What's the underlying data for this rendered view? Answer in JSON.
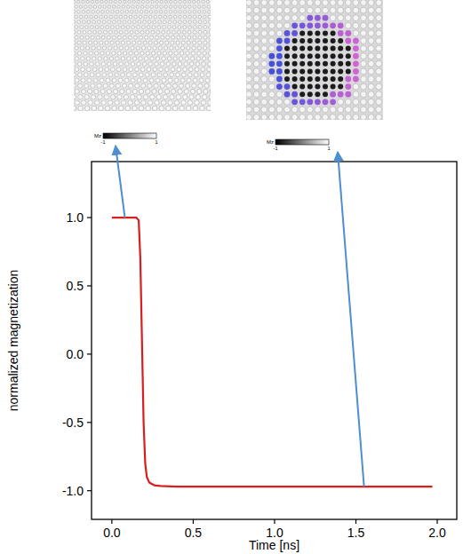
{
  "chart_data": {
    "type": "line",
    "x": [
      0,
      0.05,
      0.1,
      0.15,
      0.165,
      0.175,
      0.185,
      0.195,
      0.205,
      0.215,
      0.23,
      0.26,
      0.3,
      0.4,
      0.5,
      1.0,
      1.5,
      1.97
    ],
    "values": [
      1.0,
      1.0,
      1.0,
      1.0,
      0.98,
      0.7,
      0.1,
      -0.5,
      -0.8,
      -0.9,
      -0.94,
      -0.96,
      -0.965,
      -0.97,
      -0.97,
      -0.97,
      -0.97,
      -0.97
    ],
    "color": "#d81e1e",
    "xlabel": "Time [ns]",
    "ylabel": "normalized magnetization",
    "xlim": [
      -0.125,
      2.12
    ],
    "ylim": [
      -1.21,
      1.41
    ],
    "xticks": [
      {
        "value": 0,
        "label": "0.0"
      },
      0.5,
      {
        "value": 1,
        "label": "1.0"
      },
      1.5,
      {
        "value": 2,
        "label": "2.0"
      }
    ],
    "yticks": [
      {
        "value": -1,
        "label": "-1.0"
      },
      -0.5,
      {
        "value": 0,
        "label": "0.0"
      },
      0.5,
      {
        "value": 1,
        "label": "1.0"
      }
    ],
    "grid": false
  },
  "insets": [
    {
      "label": "Mz",
      "ticks": [
        -1,
        1
      ],
      "x": 0.08,
      "y": 1.0
    },
    {
      "label": "Mz",
      "ticks": [
        -1,
        1
      ],
      "x": 1.55,
      "y": -0.97
    }
  ]
}
